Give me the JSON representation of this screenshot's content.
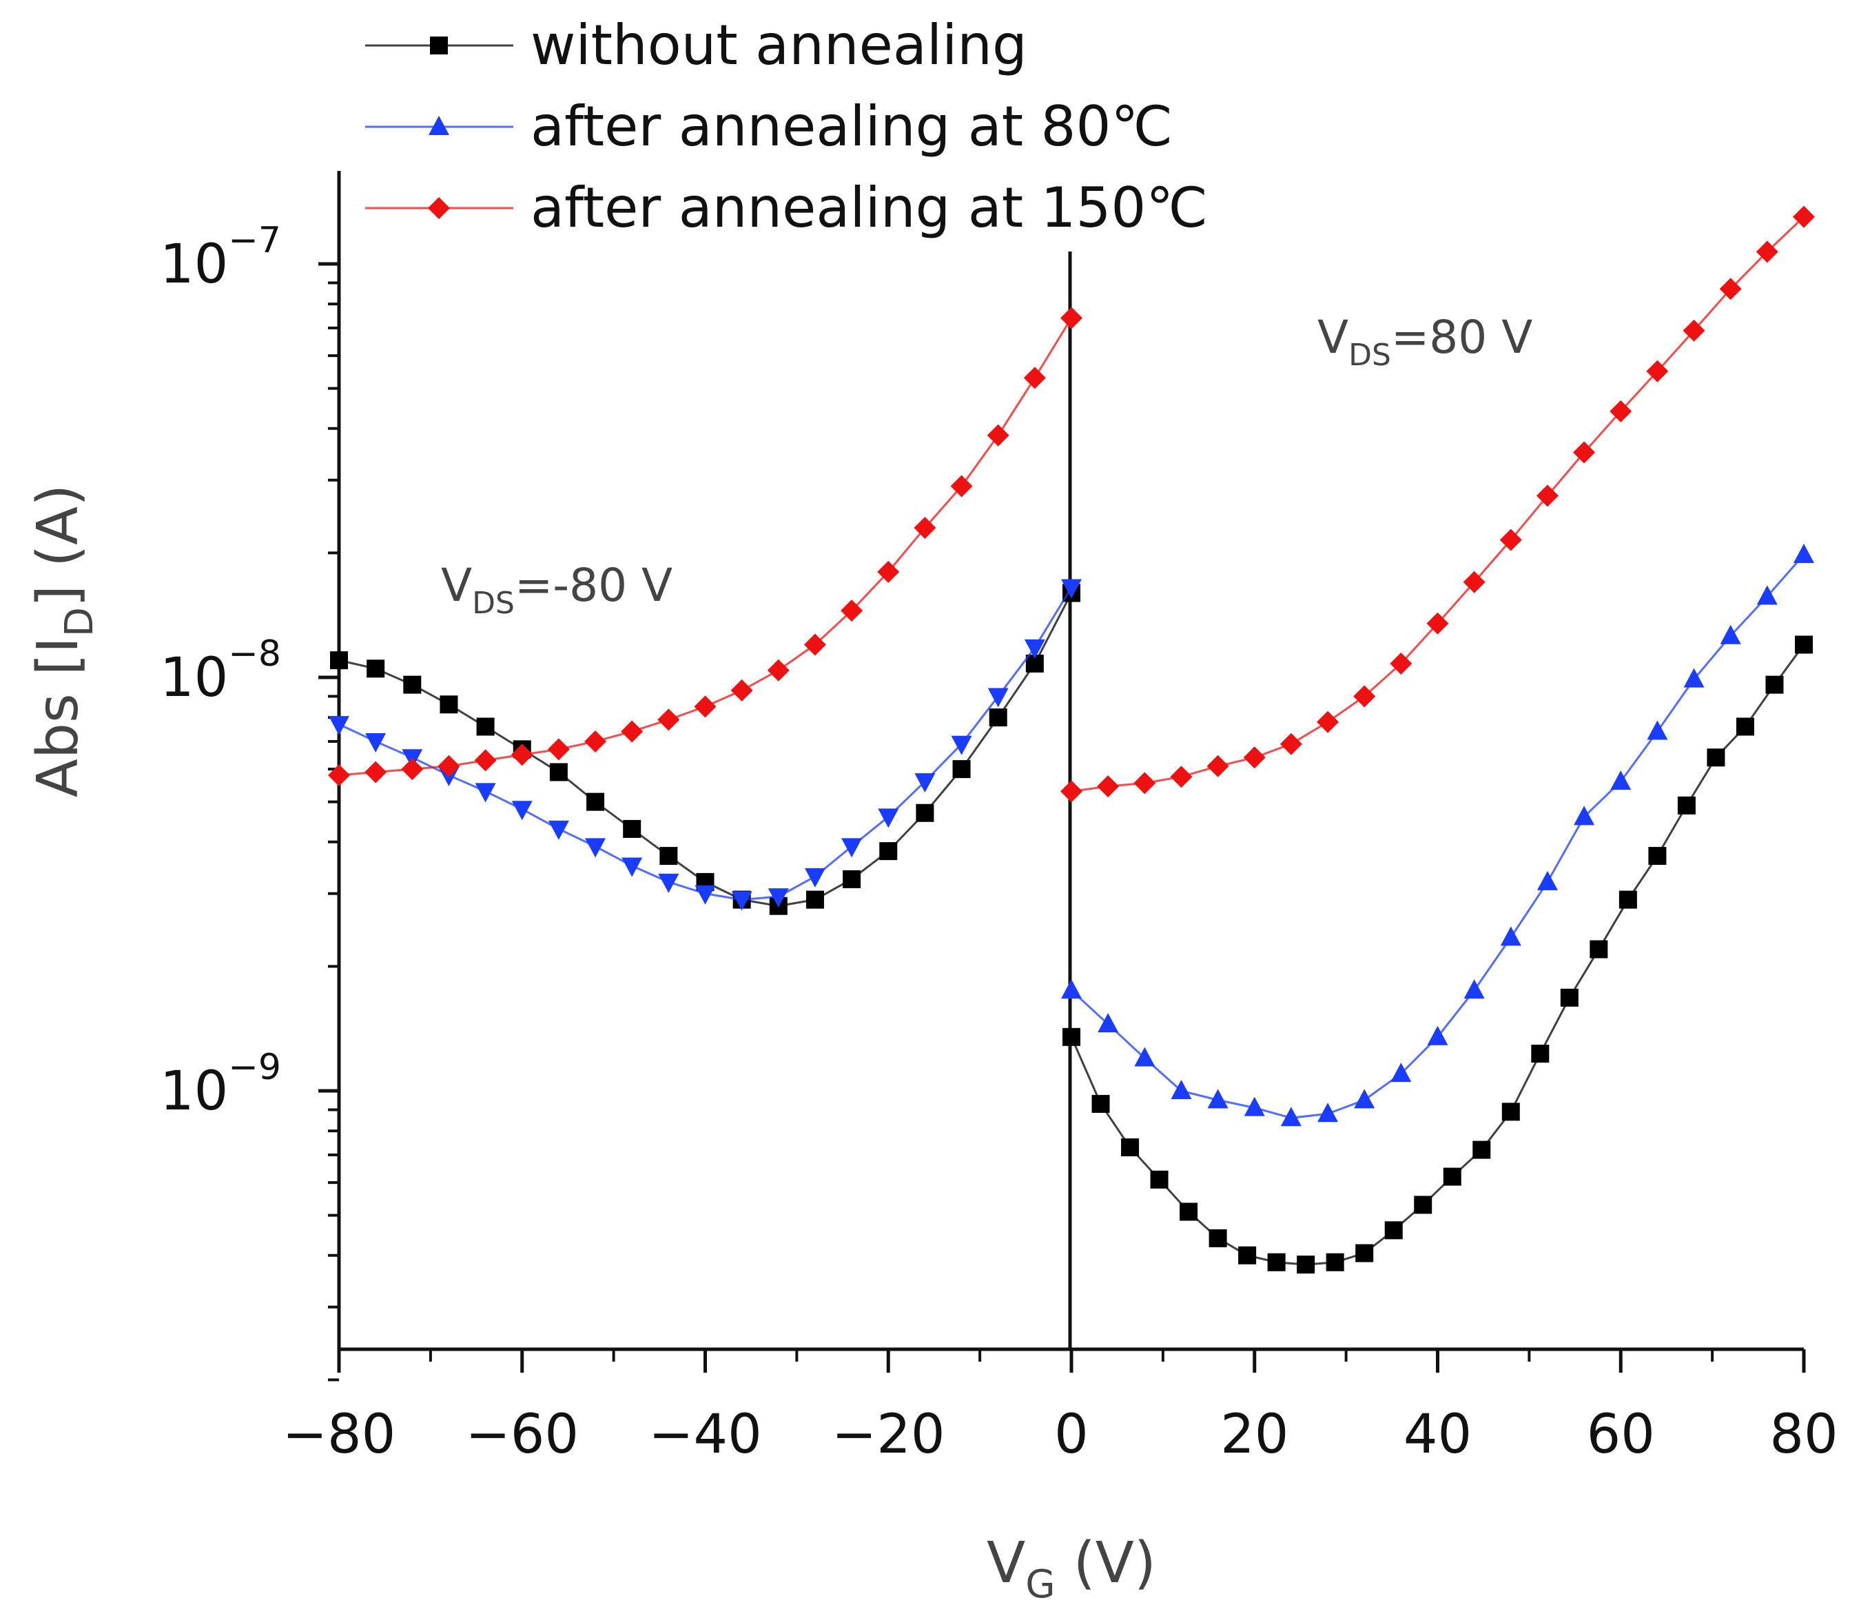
{
  "chart_data": {
    "type": "line",
    "title": "",
    "xlabel": {
      "main": "V",
      "sub": "G",
      "unit": " (V)"
    },
    "ylabel": {
      "pre": "Abs [I",
      "sub": "D",
      "post": "] (A)"
    },
    "xlim": [
      -80,
      80
    ],
    "ylog": true,
    "ylim": [
      2e-10,
      1.8e-07
    ],
    "x_ticks": [
      -80,
      -60,
      -40,
      -20,
      0,
      20,
      40,
      60,
      80
    ],
    "x_tick_labels": [
      "−80",
      "−60",
      "−40",
      "−20",
      "0",
      "20",
      "40",
      "60",
      "80"
    ],
    "y_ticks": [
      {
        "value": 1e-07,
        "base": "10",
        "exp": "−7"
      },
      {
        "value": 1e-08,
        "base": "10",
        "exp": "−8"
      },
      {
        "value": 1e-09,
        "base": "10",
        "exp": "−9"
      }
    ],
    "annotations": [
      {
        "pre": "V",
        "sub": "DS",
        "post": "=-80 V",
        "x": -60,
        "y": 1.6e-08
      },
      {
        "pre": "V",
        "sub": "DS",
        "post": "=80 V",
        "x": 27,
        "y": 6.4e-08
      }
    ],
    "legend_position": "top-left",
    "series": [
      {
        "name": "without annealing",
        "color": "#000000",
        "marker": "square",
        "branches": [
          {
            "x": [
              -80,
              -76,
              -72,
              -68,
              -64,
              -60,
              -56,
              -52,
              -48,
              -44,
              -40,
              -36,
              -32,
              -28,
              -24,
              -20,
              -16,
              -12,
              -8,
              -4,
              0
            ],
            "y": [
              1.1e-08,
              1.05e-08,
              9.6e-09,
              8.6e-09,
              7.6e-09,
              6.7e-09,
              5.9e-09,
              5e-09,
              4.3e-09,
              3.7e-09,
              3.2e-09,
              2.9e-09,
              2.8e-09,
              2.9e-09,
              3.25e-09,
              3.8e-09,
              4.7e-09,
              6e-09,
              8e-09,
              1.08e-08,
              1.6e-08
            ]
          },
          {
            "x": [
              0,
              3.2,
              6.4,
              9.6,
              12.8,
              16,
              19.2,
              22.4,
              25.6,
              28.8,
              32,
              35.2,
              38.4,
              41.6,
              44.8,
              48,
              51.2,
              54.4,
              57.6,
              60.8,
              64,
              67.2,
              70.4,
              73.6,
              76.8,
              80
            ],
            "y": [
              1.35e-09,
              9.3e-10,
              7.3e-10,
              6.1e-10,
              5.1e-10,
              4.4e-10,
              4e-10,
              3.85e-10,
              3.8e-10,
              3.85e-10,
              4.05e-10,
              4.6e-10,
              5.3e-10,
              6.2e-10,
              7.2e-10,
              8.9e-10,
              1.23e-09,
              1.68e-09,
              2.2e-09,
              2.9e-09,
              3.7e-09,
              4.9e-09,
              6.4e-09,
              7.6e-09,
              9.6e-09,
              1.2e-08
            ]
          }
        ]
      },
      {
        "name": "after annealing at 80℃",
        "color": "#1a3cff",
        "marker": "triangle",
        "branches": [
          {
            "x": [
              -80,
              -76,
              -72,
              -68,
              -64,
              -60,
              -56,
              -52,
              -48,
              -44,
              -40,
              -36,
              -32,
              -28,
              -24,
              -20,
              -16,
              -12,
              -8,
              -4,
              0
            ],
            "y": [
              7.7e-09,
              7e-09,
              6.4e-09,
              5.8e-09,
              5.3e-09,
              4.8e-09,
              4.3e-09,
              3.9e-09,
              3.5e-09,
              3.2e-09,
              3e-09,
              2.9e-09,
              2.95e-09,
              3.3e-09,
              3.9e-09,
              4.6e-09,
              5.6e-09,
              6.9e-09,
              9e-09,
              1.18e-08,
              1.65e-08
            ]
          },
          {
            "x": [
              0,
              4,
              8,
              12,
              16,
              20,
              24,
              28,
              32,
              36,
              40,
              44,
              48,
              52,
              56,
              60,
              64,
              68,
              72,
              76,
              80
            ],
            "y": [
              1.75e-09,
              1.45e-09,
              1.2e-09,
              1e-09,
              9.5e-10,
              9.1e-10,
              8.6e-10,
              8.8e-10,
              9.5e-10,
              1.1e-09,
              1.35e-09,
              1.75e-09,
              2.35e-09,
              3.2e-09,
              4.6e-09,
              5.6e-09,
              7.4e-09,
              9.9e-09,
              1.26e-08,
              1.57e-08,
              1.98e-08
            ]
          }
        ]
      },
      {
        "name": "after annealing at 150℃",
        "color": "#ee1111",
        "marker": "diamond",
        "branches": [
          {
            "x": [
              -80,
              -76,
              -72,
              -68,
              -64,
              -60,
              -56,
              -52,
              -48,
              -44,
              -40,
              -36,
              -32,
              -28,
              -24,
              -20,
              -16,
              -12,
              -8,
              -4,
              0
            ],
            "y": [
              5.8e-09,
              5.9e-09,
              6e-09,
              6.1e-09,
              6.3e-09,
              6.5e-09,
              6.7e-09,
              7e-09,
              7.4e-09,
              7.9e-09,
              8.5e-09,
              9.3e-09,
              1.04e-08,
              1.2e-08,
              1.45e-08,
              1.8e-08,
              2.3e-08,
              2.9e-08,
              3.85e-08,
              5.3e-08,
              7.4e-08
            ]
          },
          {
            "x": [
              0,
              4,
              8,
              12,
              16,
              20,
              24,
              28,
              32,
              36,
              40,
              44,
              48,
              52,
              56,
              60,
              64,
              68,
              72,
              76,
              80
            ],
            "y": [
              5.3e-09,
              5.45e-09,
              5.55e-09,
              5.75e-09,
              6.1e-09,
              6.4e-09,
              6.9e-09,
              7.8e-09,
              9e-09,
              1.08e-08,
              1.35e-08,
              1.7e-08,
              2.15e-08,
              2.75e-08,
              3.5e-08,
              4.4e-08,
              5.5e-08,
              6.9e-08,
              8.7e-08,
              1.07e-07,
              1.3e-07
            ]
          }
        ]
      }
    ]
  }
}
